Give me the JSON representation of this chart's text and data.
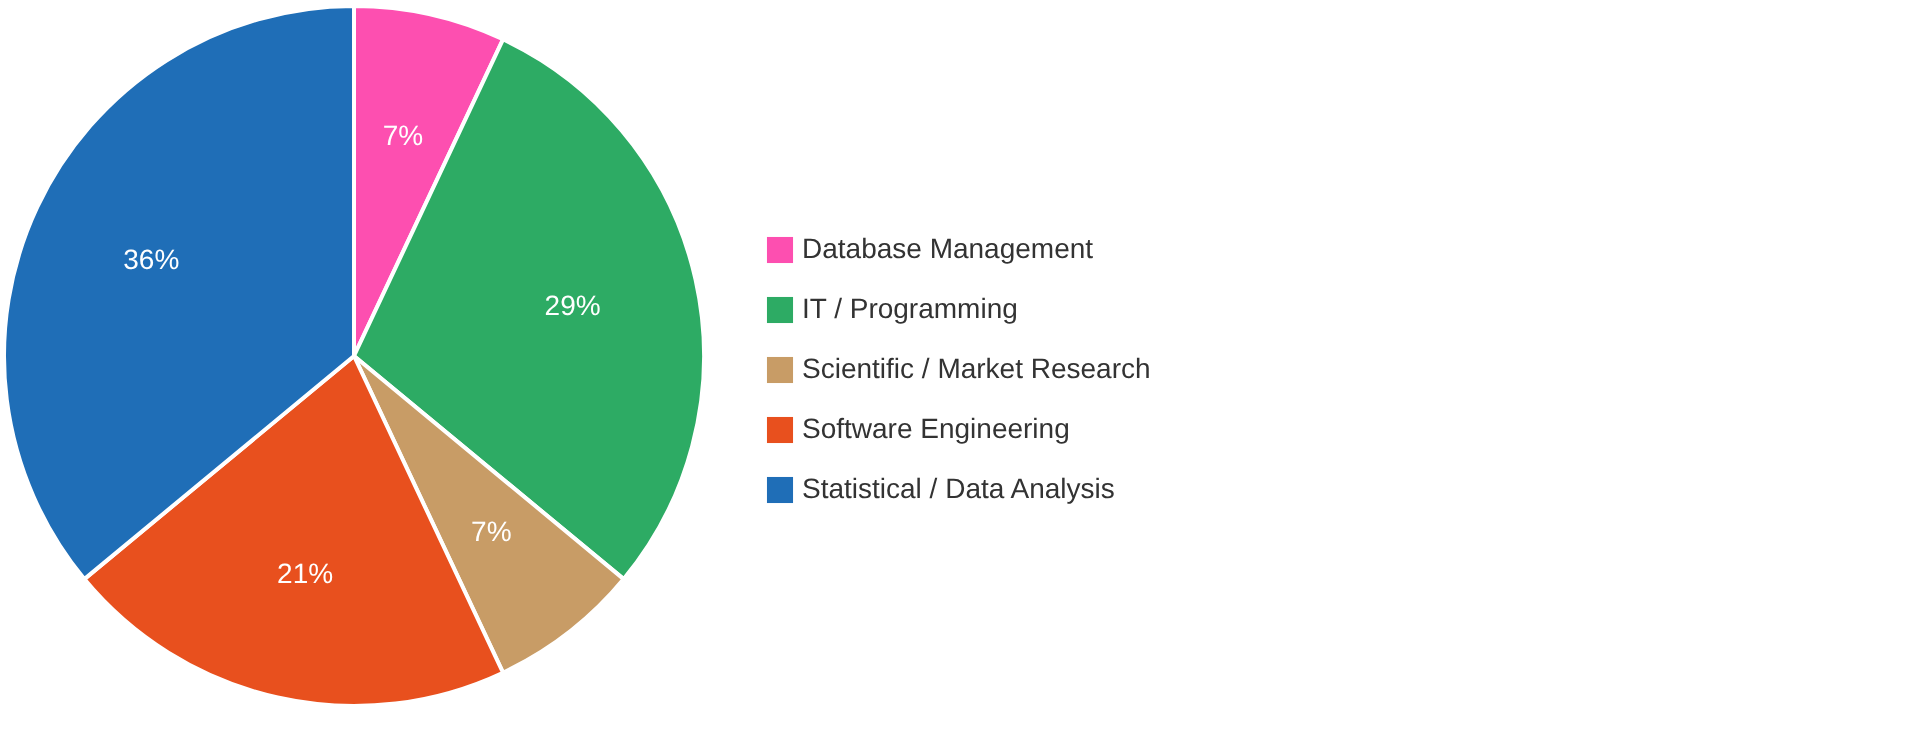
{
  "chart_data": {
    "type": "pie",
    "categories": [
      "Database Management",
      "IT / Programming",
      "Scientific / Market Research",
      "Software Engineering",
      "Statistical / Data Analysis"
    ],
    "values": [
      7,
      29,
      7,
      21,
      36
    ],
    "colors": [
      "#fd4fb0",
      "#2dab64",
      "#c89c66",
      "#e8501e",
      "#1f6eb7"
    ],
    "value_labels": [
      "7%",
      "29%",
      "7%",
      "21%",
      "36%"
    ],
    "legend": "right"
  }
}
